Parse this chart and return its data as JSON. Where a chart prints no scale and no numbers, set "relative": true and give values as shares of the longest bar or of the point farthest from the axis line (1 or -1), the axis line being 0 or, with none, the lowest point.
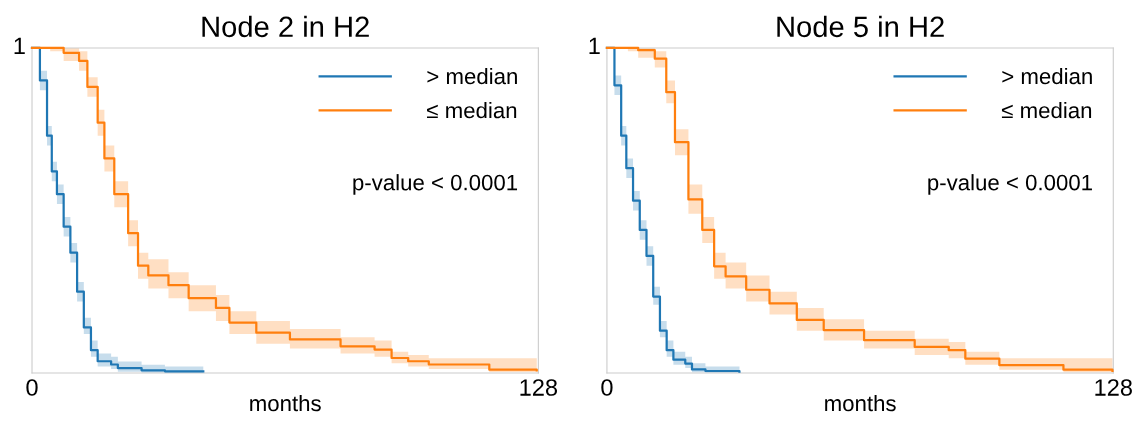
{
  "chart_data": [
    {
      "type": "step",
      "title": "Node 2 in H2",
      "xlabel": "months",
      "xlim": [
        0,
        128
      ],
      "xticks": [
        0,
        128
      ],
      "relative": true,
      "grid": false,
      "legend": "top right",
      "annotations": [
        "1",
        "p-value < 0.0001"
      ],
      "series": [
        {
          "name": "> median",
          "color": "#1f77b4",
          "x": [
            0,
            2.0,
            3.8,
            5.0,
            6.3,
            8.0,
            9.7,
            11.4,
            13.1,
            14.9,
            16.6,
            20,
            21.7,
            27.7,
            33.6,
            43.3
          ],
          "values": [
            1.0,
            0.9,
            0.73,
            0.62,
            0.55,
            0.45,
            0.37,
            0.25,
            0.14,
            0.07,
            0.036,
            0.026,
            0.015,
            0.008,
            0.005,
            0.005
          ],
          "lower": [
            1.0,
            0.87,
            0.7,
            0.59,
            0.52,
            0.42,
            0.34,
            0.22,
            0.12,
            0.05,
            0.02,
            0.012,
            0.004,
            0.001,
            0.0,
            0.0
          ],
          "upper": [
            1.0,
            0.93,
            0.76,
            0.65,
            0.58,
            0.48,
            0.4,
            0.28,
            0.17,
            0.1,
            0.06,
            0.05,
            0.035,
            0.025,
            0.02,
            0.02
          ]
        },
        {
          "name": "≤ median",
          "color": "#ff7f0e",
          "x": [
            0,
            4.6,
            8,
            11.9,
            14,
            16.6,
            18.3,
            20.8,
            24.3,
            26.8,
            29.4,
            34.5,
            39.6,
            46.5,
            49.9,
            56.7,
            65.2,
            78,
            86.6,
            90.9,
            95.1,
            100.3,
            115.6,
            127.6
          ],
          "values": [
            1.0,
            1.0,
            0.985,
            0.96,
            0.88,
            0.77,
            0.66,
            0.55,
            0.43,
            0.33,
            0.3,
            0.27,
            0.23,
            0.2,
            0.155,
            0.124,
            0.103,
            0.082,
            0.072,
            0.046,
            0.036,
            0.026,
            0.01,
            0.008
          ],
          "lower": [
            1.0,
            0.99,
            0.96,
            0.93,
            0.85,
            0.73,
            0.62,
            0.51,
            0.39,
            0.29,
            0.26,
            0.23,
            0.19,
            0.16,
            0.12,
            0.09,
            0.075,
            0.06,
            0.05,
            0.03,
            0.02,
            0.012,
            0.003,
            0.002
          ],
          "upper": [
            1.0,
            1.0,
            1.0,
            0.99,
            0.91,
            0.81,
            0.7,
            0.59,
            0.47,
            0.37,
            0.35,
            0.31,
            0.27,
            0.24,
            0.19,
            0.16,
            0.135,
            0.11,
            0.1,
            0.065,
            0.055,
            0.045,
            0.045,
            0.045
          ]
        }
      ]
    },
    {
      "type": "step",
      "title": "Node 5 in H2",
      "xlabel": "months",
      "xlim": [
        0,
        128
      ],
      "xticks": [
        0,
        128
      ],
      "relative": true,
      "grid": false,
      "legend": "top right",
      "annotations": [
        "1",
        "p-value < 0.0001"
      ],
      "series": [
        {
          "name": "> median",
          "color": "#1f77b4",
          "x": [
            0,
            1.9,
            3.6,
            4.9,
            6.6,
            8.3,
            10,
            11.7,
            13.4,
            15.1,
            16.8,
            19.8,
            21.5,
            24.9,
            33.5
          ],
          "values": [
            1.0,
            0.885,
            0.73,
            0.63,
            0.53,
            0.44,
            0.36,
            0.235,
            0.13,
            0.07,
            0.041,
            0.029,
            0.011,
            0.006,
            0.004
          ],
          "lower": [
            1.0,
            0.855,
            0.7,
            0.6,
            0.5,
            0.41,
            0.33,
            0.21,
            0.11,
            0.05,
            0.025,
            0.015,
            0.002,
            0.0,
            0.0
          ],
          "upper": [
            1.0,
            0.915,
            0.76,
            0.66,
            0.56,
            0.47,
            0.39,
            0.265,
            0.16,
            0.1,
            0.065,
            0.05,
            0.03,
            0.02,
            0.015
          ]
        },
        {
          "name": "≤ median",
          "color": "#ff7f0e",
          "x": [
            0,
            5.3,
            7.9,
            12.1,
            15,
            17.2,
            20.6,
            24.1,
            27.1,
            30,
            35.2,
            41.1,
            48,
            54.8,
            65,
            77.8,
            86.4,
            90.6,
            99.2,
            115.4,
            127.8
          ],
          "values": [
            1.0,
            1.0,
            0.993,
            0.967,
            0.864,
            0.71,
            0.534,
            0.44,
            0.328,
            0.297,
            0.256,
            0.214,
            0.163,
            0.132,
            0.101,
            0.08,
            0.07,
            0.044,
            0.024,
            0.01,
            0.006
          ],
          "lower": [
            1.0,
            0.99,
            0.97,
            0.94,
            0.83,
            0.67,
            0.49,
            0.4,
            0.29,
            0.26,
            0.22,
            0.18,
            0.13,
            0.1,
            0.075,
            0.055,
            0.045,
            0.025,
            0.01,
            0.002,
            0.001
          ],
          "upper": [
            1.0,
            1.0,
            1.0,
            0.99,
            0.9,
            0.75,
            0.58,
            0.48,
            0.37,
            0.34,
            0.3,
            0.25,
            0.2,
            0.165,
            0.13,
            0.105,
            0.095,
            0.065,
            0.045,
            0.045,
            0.045
          ]
        }
      ]
    }
  ]
}
